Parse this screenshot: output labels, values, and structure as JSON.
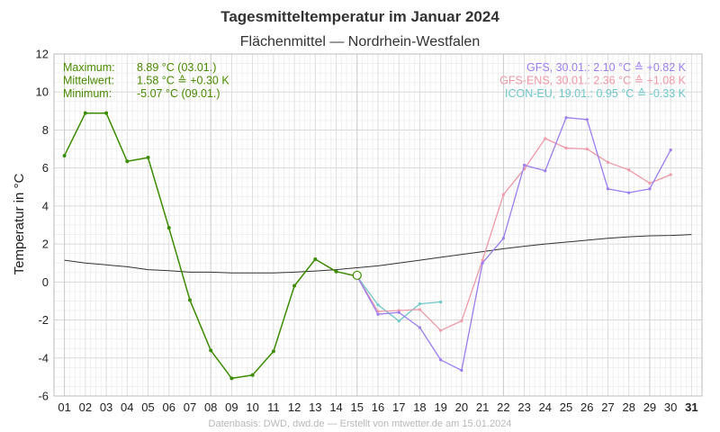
{
  "chart_data": {
    "type": "line",
    "title": "Tagesmitteltemperatur im Januar 2024",
    "subtitle": "Flächenmittel — Nordrhein-Westfalen",
    "ylabel": "Temperatur in °C",
    "xlabel": "",
    "ylim": [
      -6,
      12
    ],
    "yticks": [
      -6,
      -4,
      -2,
      0,
      2,
      4,
      6,
      8,
      10,
      12
    ],
    "xlim": [
      0.5,
      31.5
    ],
    "xticks": [
      "01",
      "02",
      "03",
      "04",
      "05",
      "06",
      "07",
      "08",
      "09",
      "10",
      "11",
      "12",
      "13",
      "14",
      "15",
      "16",
      "17",
      "18",
      "19",
      "20",
      "21",
      "22",
      "23",
      "24",
      "25",
      "26",
      "27",
      "28",
      "29",
      "30",
      "31"
    ],
    "grid": true,
    "series": [
      {
        "key": "observed",
        "color": "#3d8c00",
        "x": [
          1,
          2,
          3,
          4,
          5,
          6,
          7,
          8,
          9,
          10,
          11,
          12,
          13,
          14,
          15
        ],
        "y": [
          6.65,
          8.89,
          8.89,
          6.35,
          6.55,
          2.85,
          -0.95,
          -3.6,
          -5.07,
          -4.9,
          -3.65,
          -0.2,
          1.2,
          0.55,
          0.3
        ]
      },
      {
        "key": "climate",
        "color": "#333333",
        "x": [
          1,
          2,
          3,
          4,
          5,
          6,
          7,
          8,
          9,
          10,
          11,
          12,
          13,
          14,
          15,
          16,
          17,
          18,
          19,
          20,
          21,
          22,
          23,
          24,
          25,
          26,
          27,
          28,
          29,
          30,
          31
        ],
        "y": [
          1.15,
          1.0,
          0.9,
          0.8,
          0.65,
          0.6,
          0.52,
          0.52,
          0.48,
          0.48,
          0.48,
          0.52,
          0.58,
          0.65,
          0.75,
          0.85,
          1.0,
          1.15,
          1.3,
          1.45,
          1.6,
          1.75,
          1.88,
          2.0,
          2.1,
          2.2,
          2.3,
          2.38,
          2.43,
          2.45,
          2.5
        ]
      },
      {
        "key": "gfs",
        "color": "#9b7df0",
        "x": [
          15,
          16,
          17,
          18,
          19,
          20,
          21,
          22,
          23,
          24,
          25,
          26,
          27,
          28,
          29,
          30
        ],
        "y": [
          0.3,
          -1.7,
          -1.6,
          -2.4,
          -4.1,
          -4.65,
          1.0,
          2.3,
          6.15,
          5.85,
          8.65,
          8.55,
          4.9,
          4.7,
          4.9,
          6.95
        ]
      },
      {
        "key": "gfs_ens",
        "color": "#ee99a8",
        "x": [
          15,
          16,
          17,
          18,
          19,
          20,
          21,
          22,
          23,
          24,
          25,
          26,
          27,
          28,
          29,
          30
        ],
        "y": [
          0.3,
          -1.55,
          -1.5,
          -1.45,
          -2.55,
          -2.05,
          1.15,
          4.6,
          5.95,
          7.55,
          7.05,
          7.0,
          6.3,
          5.9,
          5.2,
          5.65
        ]
      },
      {
        "key": "icon_eu",
        "color": "#6ec7c8",
        "x": [
          15,
          16,
          17,
          18,
          19
        ],
        "y": [
          0.3,
          -1.2,
          -2.05,
          -1.15,
          -1.05
        ]
      }
    ],
    "current_point": {
      "x": 15,
      "y": 0.35
    },
    "stats": [
      {
        "label": "Maximum:",
        "value": "8.89 °C  (03.01.)"
      },
      {
        "label": "Mittelwert:",
        "value": "1.58 °C  ≙ +0.30 K"
      },
      {
        "label": "Minimum:",
        "value": "-5.07 °C  (09.01.)"
      }
    ],
    "legend": [
      {
        "series": "gfs",
        "text": "GFS, 30.01.:  2.10 °C  ≙ +0.82 K"
      },
      {
        "series": "gfs_ens",
        "text": "GFS-ENS, 30.01.:  2.36 °C  ≙ +1.08 K"
      },
      {
        "series": "icon_eu",
        "text": "ICON-EU, 19.01.:  0.95 °C  ≙ -0.33 K"
      }
    ],
    "legend_position": "top-right",
    "stats_position": "top-left"
  },
  "footer": "Datenbasis: DWD, dwd.de — Erstellt von mtwetter.de am 15.01.2024"
}
